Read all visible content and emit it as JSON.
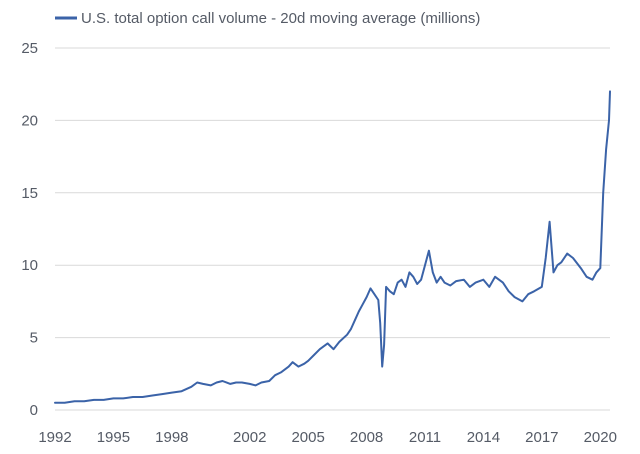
{
  "chart_data": {
    "type": "line",
    "title": "",
    "xlabel": "",
    "ylabel": "",
    "legend": {
      "position": "top-left"
    },
    "grid": {
      "y": true,
      "x": false
    },
    "ylim": [
      0,
      25
    ],
    "xlim": [
      1992,
      2020.5
    ],
    "x_ticks": [
      1992,
      1995,
      1998,
      2002,
      2005,
      2008,
      2011,
      2014,
      2017,
      2020
    ],
    "x_tick_labels": [
      "1992",
      "1995",
      "1998",
      "2002",
      "2005",
      "2008",
      "2011",
      "2014",
      "2017",
      "2020"
    ],
    "y_ticks": [
      0,
      5,
      10,
      15,
      20,
      25
    ],
    "y_tick_labels": [
      "0",
      "5",
      "10",
      "15",
      "20",
      "25"
    ],
    "colors": {
      "series": "#3b63a8",
      "grid": "#d9d9d9",
      "text": "#555b66"
    },
    "series": [
      {
        "name": "U.S. total option call volume - 20d moving average (millions)",
        "x": [
          1992.0,
          1992.5,
          1993.0,
          1993.5,
          1994.0,
          1994.5,
          1995.0,
          1995.5,
          1996.0,
          1996.5,
          1997.0,
          1997.5,
          1998.0,
          1998.5,
          1999.0,
          1999.3,
          1999.6,
          2000.0,
          2000.3,
          2000.6,
          2001.0,
          2001.3,
          2001.6,
          2002.0,
          2002.3,
          2002.6,
          2003.0,
          2003.3,
          2003.6,
          2004.0,
          2004.2,
          2004.5,
          2004.8,
          2005.0,
          2005.3,
          2005.6,
          2006.0,
          2006.3,
          2006.6,
          2007.0,
          2007.2,
          2007.4,
          2007.6,
          2007.8,
          2008.0,
          2008.2,
          2008.4,
          2008.6,
          2008.7,
          2008.8,
          2008.9,
          2009.0,
          2009.2,
          2009.4,
          2009.6,
          2009.8,
          2010.0,
          2010.2,
          2010.4,
          2010.6,
          2010.8,
          2011.0,
          2011.2,
          2011.4,
          2011.6,
          2011.8,
          2012.0,
          2012.3,
          2012.6,
          2013.0,
          2013.3,
          2013.6,
          2014.0,
          2014.3,
          2014.6,
          2015.0,
          2015.3,
          2015.6,
          2016.0,
          2016.3,
          2016.6,
          2017.0,
          2017.2,
          2017.4,
          2017.6,
          2017.8,
          2018.0,
          2018.3,
          2018.6,
          2019.0,
          2019.3,
          2019.6,
          2019.8,
          2020.0,
          2020.15,
          2020.3,
          2020.45,
          2020.5
        ],
        "values": [
          0.5,
          0.5,
          0.6,
          0.6,
          0.7,
          0.7,
          0.8,
          0.8,
          0.9,
          0.9,
          1.0,
          1.1,
          1.2,
          1.3,
          1.6,
          1.9,
          1.8,
          1.7,
          1.9,
          2.0,
          1.8,
          1.9,
          1.9,
          1.8,
          1.7,
          1.9,
          2.0,
          2.4,
          2.6,
          3.0,
          3.3,
          3.0,
          3.2,
          3.4,
          3.8,
          4.2,
          4.6,
          4.2,
          4.7,
          5.2,
          5.6,
          6.2,
          6.8,
          7.3,
          7.8,
          8.4,
          8.0,
          7.6,
          6.0,
          3.0,
          4.5,
          8.5,
          8.2,
          8.0,
          8.8,
          9.0,
          8.5,
          9.5,
          9.2,
          8.7,
          9.0,
          10.0,
          11.0,
          9.5,
          8.8,
          9.2,
          8.8,
          8.6,
          8.9,
          9.0,
          8.5,
          8.8,
          9.0,
          8.5,
          9.2,
          8.8,
          8.2,
          7.8,
          7.5,
          8.0,
          8.2,
          8.5,
          10.5,
          13.0,
          9.5,
          10.0,
          10.2,
          10.8,
          10.5,
          9.8,
          9.2,
          9.0,
          9.5,
          9.8,
          15.0,
          18.0,
          20.0,
          22.0
        ]
      }
    ]
  }
}
